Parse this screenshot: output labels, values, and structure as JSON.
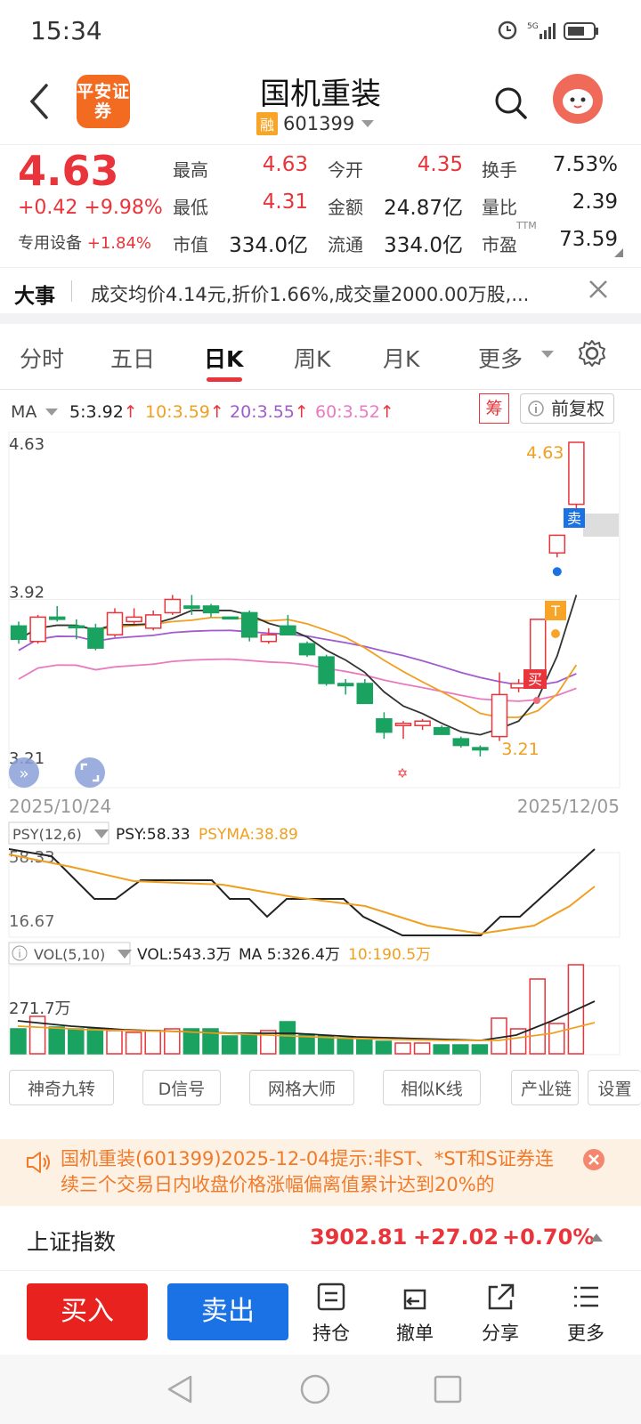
{
  "status_bar": {
    "time": "15:34",
    "network": "5G"
  },
  "header": {
    "title": "国机重装",
    "code": "601399",
    "rong_badge": "融",
    "broker_logo": "平安证券"
  },
  "quote": {
    "price": "4.63",
    "change": "+0.42",
    "change_pct": "+9.98%",
    "sector": "专用设备",
    "sector_pct": "+1.84%",
    "fields": [
      {
        "label": "最高",
        "value": "4.63",
        "color": "#e8343a"
      },
      {
        "label": "今开",
        "value": "4.35",
        "color": "#e8343a"
      },
      {
        "label": "换手",
        "value": "7.53%",
        "color": "#222"
      },
      {
        "label": "最低",
        "value": "4.31",
        "color": "#e8343a"
      },
      {
        "label": "金额",
        "value": "24.87亿",
        "color": "#222"
      },
      {
        "label": "量比",
        "value": "2.39",
        "color": "#222"
      },
      {
        "label": "市值",
        "value": "334.0亿",
        "color": "#222"
      },
      {
        "label": "流通",
        "value": "334.0亿",
        "color": "#222"
      },
      {
        "label": "市盈",
        "value": "73.59",
        "color": "#222"
      }
    ],
    "pe_sup": "TTM"
  },
  "news": {
    "tag": "大事",
    "text": "成交均价4.14元,折价1.66%,成交量2000.00万股,..."
  },
  "tabs": [
    "分时",
    "五日",
    "日K",
    "周K",
    "月K",
    "更多"
  ],
  "active_tab": "日K",
  "ma_legend": {
    "label": "MA",
    "ma5": "5:3.92",
    "ma10": "10:3.59",
    "ma20": "20:3.55",
    "ma60": "60:3.52",
    "chou": "筹",
    "fuquan": "前复权"
  },
  "kline": {
    "y_max": "4.63",
    "y_mid": "3.92",
    "y_min": "3.21",
    "date_start": "2025/10/24",
    "date_end": "2025/12/05",
    "label_high": "4.63",
    "label_low": "3.21",
    "sell_tag": "卖",
    "buy_tag": "买",
    "t_tag": "T"
  },
  "psy": {
    "name": "PSY(12,6)",
    "psy": "PSY:58.33",
    "psyma": "PSYMA:38.89",
    "y_top": "58.33",
    "y_bottom": "16.67"
  },
  "vol": {
    "name": "VOL(5,10)",
    "vol": "VOL:543.3万",
    "ma5": "MA 5:326.4万",
    "ma10": "10:190.5万",
    "y_label": "271.7万"
  },
  "tool_buttons": [
    "神奇九转",
    "D信号",
    "网格大师",
    "相似K线",
    "产业链",
    "设置"
  ],
  "notice": {
    "text": "国机重装(601399)2025-12-04提示:非ST、*ST和S证券连续三个交易日内收盘价格涨幅偏离值累计达到20%的"
  },
  "index": {
    "name": "上证指数",
    "value": "3902.81",
    "change": "+27.02",
    "pct": "+0.70%"
  },
  "bottom_bar": {
    "buy": "买入",
    "sell": "卖出",
    "items": [
      "持仓",
      "撤单",
      "分享",
      "更多"
    ]
  },
  "chart_data": {
    "type": "candlestick",
    "x_range": [
      "2025/10/24",
      "2025/12/05"
    ],
    "y_ticks": [
      4.63,
      3.92,
      3.21
    ],
    "candles": [
      {
        "open": 3.8,
        "high": 3.82,
        "low": 3.72,
        "close": 3.74,
        "dir": "down"
      },
      {
        "open": 3.73,
        "high": 3.85,
        "low": 3.72,
        "close": 3.84,
        "dir": "up"
      },
      {
        "open": 3.84,
        "high": 3.89,
        "low": 3.82,
        "close": 3.83,
        "dir": "down"
      },
      {
        "open": 3.8,
        "high": 3.83,
        "low": 3.74,
        "close": 3.8,
        "dir": "down"
      },
      {
        "open": 3.79,
        "high": 3.81,
        "low": 3.69,
        "close": 3.7,
        "dir": "down"
      },
      {
        "open": 3.76,
        "high": 3.88,
        "low": 3.75,
        "close": 3.86,
        "dir": "up"
      },
      {
        "open": 3.82,
        "high": 3.88,
        "low": 3.81,
        "close": 3.84,
        "dir": "up"
      },
      {
        "open": 3.79,
        "high": 3.87,
        "low": 3.78,
        "close": 3.85,
        "dir": "up"
      },
      {
        "open": 3.86,
        "high": 3.94,
        "low": 3.85,
        "close": 3.92,
        "dir": "up"
      },
      {
        "open": 3.89,
        "high": 3.94,
        "low": 3.85,
        "close": 3.88,
        "dir": "down"
      },
      {
        "open": 3.89,
        "high": 3.9,
        "low": 3.84,
        "close": 3.86,
        "dir": "down"
      },
      {
        "open": 3.84,
        "high": 3.84,
        "low": 3.83,
        "close": 3.84,
        "dir": "flat"
      },
      {
        "open": 3.86,
        "high": 3.87,
        "low": 3.73,
        "close": 3.75,
        "dir": "down"
      },
      {
        "open": 3.76,
        "high": 3.79,
        "low": 3.72,
        "close": 3.73,
        "dir": "up"
      },
      {
        "open": 3.8,
        "high": 3.85,
        "low": 3.76,
        "close": 3.76,
        "dir": "down"
      },
      {
        "open": 3.72,
        "high": 3.73,
        "low": 3.66,
        "close": 3.67,
        "dir": "down"
      },
      {
        "open": 3.66,
        "high": 3.67,
        "low": 3.53,
        "close": 3.54,
        "dir": "down"
      },
      {
        "open": 3.54,
        "high": 3.56,
        "low": 3.49,
        "close": 3.53,
        "dir": "down"
      },
      {
        "open": 3.54,
        "high": 3.56,
        "low": 3.45,
        "close": 3.45,
        "dir": "down"
      },
      {
        "open": 3.38,
        "high": 3.41,
        "low": 3.29,
        "close": 3.32,
        "dir": "down"
      },
      {
        "open": 3.36,
        "high": 3.37,
        "low": 3.29,
        "close": 3.35,
        "dir": "up"
      },
      {
        "open": 3.35,
        "high": 3.38,
        "low": 3.33,
        "close": 3.37,
        "dir": "up"
      },
      {
        "open": 3.34,
        "high": 3.35,
        "low": 3.31,
        "close": 3.31,
        "dir": "down"
      },
      {
        "open": 3.29,
        "high": 3.3,
        "low": 3.25,
        "close": 3.26,
        "dir": "down"
      },
      {
        "open": 3.24,
        "high": 3.26,
        "low": 3.21,
        "close": 3.25,
        "dir": "down"
      },
      {
        "open": 3.3,
        "high": 3.59,
        "low": 3.28,
        "close": 3.49,
        "dir": "up"
      },
      {
        "open": 3.52,
        "high": 3.56,
        "low": 3.5,
        "close": 3.54,
        "dir": "up"
      },
      {
        "open": 3.54,
        "high": 3.83,
        "low": 3.53,
        "close": 3.83,
        "dir": "up"
      },
      {
        "open": 4.13,
        "high": 4.21,
        "low": 4.11,
        "close": 4.21,
        "dir": "up"
      },
      {
        "open": 4.35,
        "high": 4.63,
        "low": 4.31,
        "close": 4.63,
        "dir": "up"
      }
    ],
    "psy": {
      "current": 58.33,
      "ma": 38.89
    },
    "volume": {
      "current": "543.3万",
      "ma5": "326.4万",
      "ma10": "190.5万"
    }
  }
}
